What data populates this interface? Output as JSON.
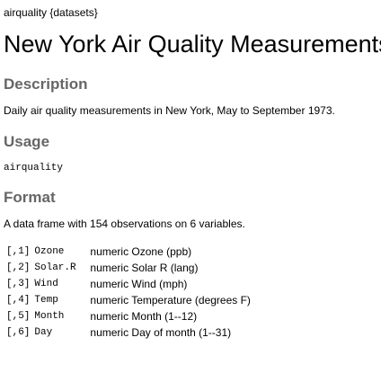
{
  "header": {
    "topic": "airquality {datasets}"
  },
  "title": "New York Air Quality Measurements",
  "description": {
    "heading": "Description",
    "text": "Daily air quality measurements in New York, May to September 1973."
  },
  "usage": {
    "heading": "Usage",
    "code": "airquality"
  },
  "format": {
    "heading": "Format",
    "text": "A data frame with 154 observations on 6 variables.",
    "variables": [
      {
        "index": "[,1]",
        "name": "Ozone",
        "description": "numeric Ozone (ppb)"
      },
      {
        "index": "[,2]",
        "name": "Solar.R",
        "description": "numeric Solar R (lang)"
      },
      {
        "index": "[,3]",
        "name": "Wind",
        "description": "numeric Wind (mph)"
      },
      {
        "index": "[,4]",
        "name": "Temp",
        "description": "numeric Temperature (degrees F)"
      },
      {
        "index": "[,5]",
        "name": "Month",
        "description": "numeric Month (1--12)"
      },
      {
        "index": "[,6]",
        "name": "Day",
        "description": "numeric Day of month (1--31)"
      }
    ]
  }
}
